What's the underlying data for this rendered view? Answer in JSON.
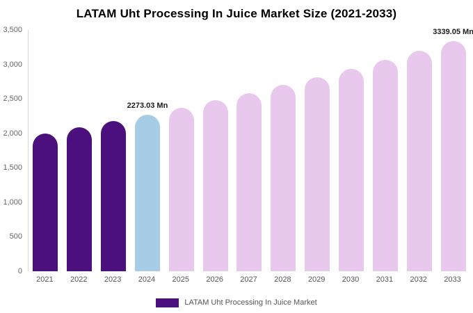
{
  "title": "LATAM Uht Processing In Juice Market Size (2021-2033)",
  "legend": {
    "label": "LATAM Uht Processing In Juice Market",
    "swatch_color": "#4b0f7e"
  },
  "colors": {
    "historical": "#4b0f7e",
    "current_year": "#a6cce6",
    "forecast": "#e9c8ed",
    "axis_text": "#666666",
    "annotation_text": "#1a1a1a"
  },
  "chart_data": {
    "type": "bar",
    "title": "LATAM Uht Processing In Juice Market Size (2021-2033)",
    "categories": [
      "2021",
      "2022",
      "2023",
      "2024",
      "2025",
      "2026",
      "2027",
      "2028",
      "2029",
      "2030",
      "2031",
      "2032",
      "2033"
    ],
    "values": [
      2000,
      2090,
      2180,
      2273.03,
      2370,
      2480,
      2580,
      2700,
      2810,
      2940,
      3070,
      3200,
      3339.05
    ],
    "unit": "Mn",
    "ylim": [
      0,
      3500
    ],
    "yticks": [
      {
        "value": 3500,
        "label": "3,500"
      },
      {
        "value": 3000,
        "label": "3,000"
      },
      {
        "value": 2500,
        "label": "2,500"
      },
      {
        "value": 2000,
        "label": "2,000"
      },
      {
        "value": 1500,
        "label": "1,500"
      },
      {
        "value": 1000,
        "label": "1,000"
      },
      {
        "value": 500,
        "label": "500"
      },
      {
        "value": 0,
        "label": "0"
      }
    ],
    "bar_colors": [
      "#4b0f7e",
      "#4b0f7e",
      "#4b0f7e",
      "#a6cce6",
      "#e9c8ed",
      "#e9c8ed",
      "#e9c8ed",
      "#e9c8ed",
      "#e9c8ed",
      "#e9c8ed",
      "#e9c8ed",
      "#e9c8ed",
      "#e9c8ed"
    ],
    "annotations": [
      {
        "category": "2024",
        "text": "2273.03 Mn"
      },
      {
        "category": "2033",
        "text": "3339.05 Mn"
      }
    ],
    "grid": false,
    "legend_position": "bottom"
  }
}
